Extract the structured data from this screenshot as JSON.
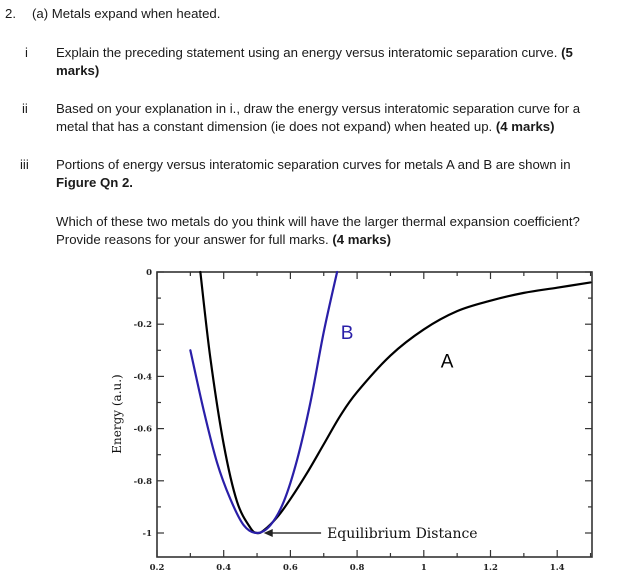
{
  "question": {
    "number": "2.",
    "part_label": "(a)",
    "heading": "Metals expand when heated.",
    "items": [
      {
        "roman": "i",
        "line1": "Explain the preceding statement using an energy versus interatomic separation curve.",
        "line1_bold_tail": "(5",
        "line2_bold": "marks)"
      },
      {
        "roman": "ii",
        "line1": "Based on your explanation in i., draw the energy versus interatomic separation curve for a",
        "line2": "metal that has a constant dimension (ie does not expand) when heated up.",
        "line2_bold_tail": "(4 marks)"
      },
      {
        "roman": "iii",
        "line1": "Portions of energy versus interatomic separation curves for metals A and B are shown in",
        "line2_bold": "Figure Qn 2.",
        "line3": "Which of these two metals do you think will have the larger thermal expansion coefficient?",
        "line4": "Provide reasons for your answer for full marks.",
        "line4_bold_tail": "(4 marks)"
      }
    ]
  },
  "chart_data": {
    "type": "line",
    "title": "",
    "xlabel": "",
    "ylabel": "Energy (a.u.)",
    "xlim": [
      0.2,
      1.5
    ],
    "ylim": [
      -1.09,
      0
    ],
    "x_ticks": [
      "0.2",
      "0.4",
      "0.6",
      "0.8",
      "1",
      "1.2",
      "1.4"
    ],
    "y_ticks": [
      "0",
      "-0.2",
      "-0.4",
      "-0.6",
      "-0.8",
      "-1"
    ],
    "grid": false,
    "legend": "none (curves labeled inline)",
    "series": [
      {
        "name": "A",
        "color": "#000000",
        "x": [
          0.33,
          0.36,
          0.4,
          0.44,
          0.48,
          0.5,
          0.52,
          0.56,
          0.6,
          0.65,
          0.7,
          0.75,
          0.8,
          0.9,
          1.0,
          1.1,
          1.2,
          1.3,
          1.4,
          1.5
        ],
        "y": [
          0.0,
          -0.33,
          -0.66,
          -0.88,
          -0.98,
          -1.0,
          -0.99,
          -0.94,
          -0.87,
          -0.77,
          -0.66,
          -0.55,
          -0.46,
          -0.32,
          -0.22,
          -0.15,
          -0.11,
          -0.08,
          -0.06,
          -0.04
        ]
      },
      {
        "name": "B",
        "color": "#2a1fa8",
        "x": [
          0.3,
          0.34,
          0.38,
          0.42,
          0.46,
          0.5,
          0.54,
          0.58,
          0.62,
          0.66,
          0.7,
          0.74
        ],
        "y": [
          -0.3,
          -0.53,
          -0.73,
          -0.87,
          -0.97,
          -1.0,
          -0.97,
          -0.88,
          -0.72,
          -0.5,
          -0.23,
          0.0
        ]
      }
    ],
    "annotations": [
      {
        "text": "B",
        "x": 0.77,
        "y": -0.23,
        "color": "#2a1fa8"
      },
      {
        "text": "A",
        "x": 1.07,
        "y": -0.34,
        "color": "#000000"
      },
      {
        "text": "Equilibrium Distance",
        "x": 0.71,
        "y": -1.0,
        "arrow_to": [
          0.52,
          -1.0
        ]
      }
    ]
  }
}
